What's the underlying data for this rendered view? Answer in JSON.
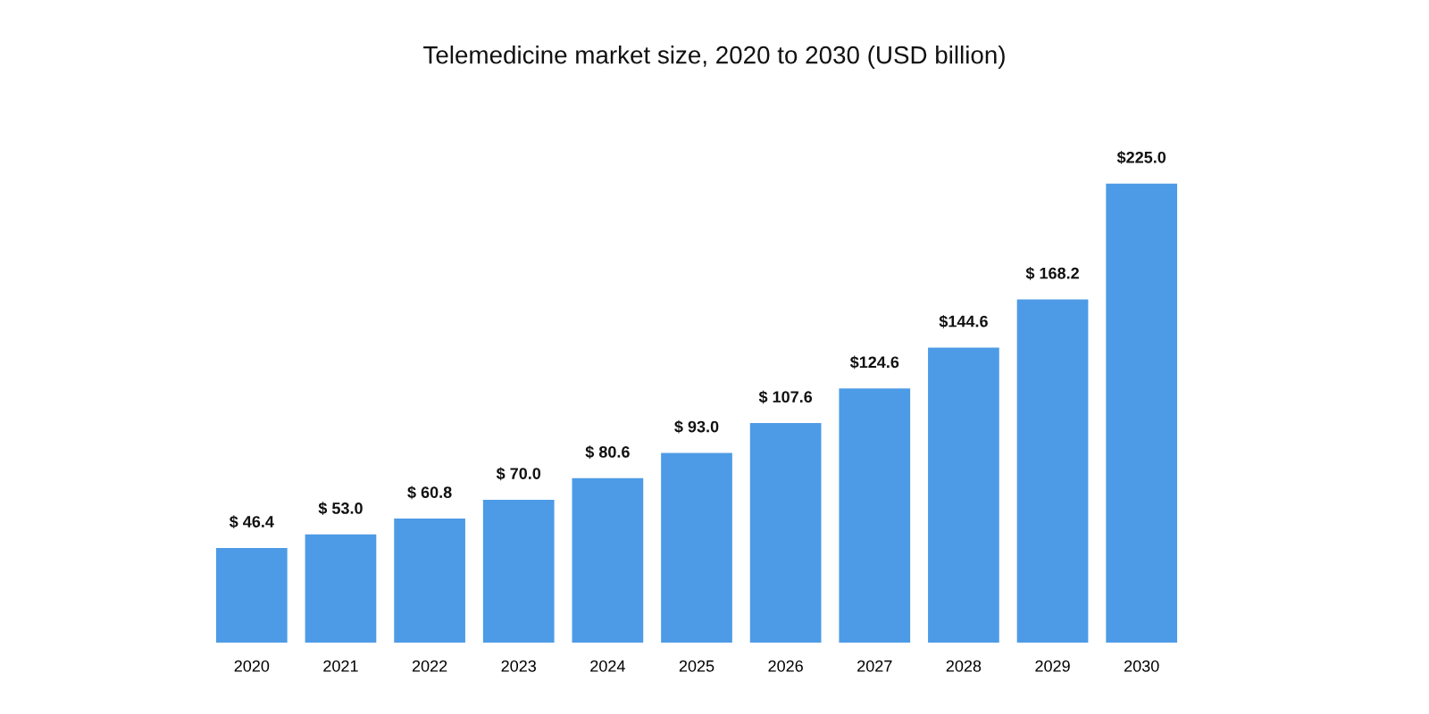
{
  "chart_data": {
    "type": "bar",
    "title": "Telemedicine market size, 2020 to 2030 (USD billion)",
    "categories": [
      "2020",
      "2021",
      "2022",
      "2023",
      "2024",
      "2025",
      "2026",
      "2027",
      "2028",
      "2029",
      "2030"
    ],
    "values": [
      46.4,
      53.0,
      60.8,
      70.0,
      80.6,
      93.0,
      107.6,
      124.6,
      144.6,
      168.2,
      225.0
    ],
    "value_labels": [
      "$ 46.4",
      "$ 53.0",
      "$ 60.8",
      "$ 70.0",
      "$ 80.6",
      "$ 93.0",
      "$ 107.6",
      "$124.6",
      "$144.6",
      "$ 168.2",
      "$225.0"
    ],
    "color": "#4d9be6",
    "grid": false,
    "legend": false
  }
}
